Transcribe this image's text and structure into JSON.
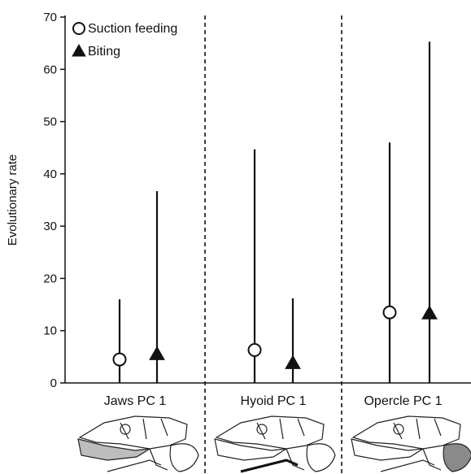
{
  "chart_data": {
    "type": "scatter",
    "ylabel": "Evolutionary rate",
    "ylim": [
      0,
      70
    ],
    "yticks": [
      0,
      10,
      20,
      30,
      40,
      50,
      60,
      70
    ],
    "categories": [
      "Jaws PC 1",
      "Hyoid PC 1",
      "Opercle PC 1"
    ],
    "legend_position": "top-left",
    "series": [
      {
        "name": "Suction feeding",
        "marker": "open-circle",
        "values": [
          4.5,
          6.3,
          13.5
        ],
        "upper": [
          16,
          44.7,
          46
        ]
      },
      {
        "name": "Biting",
        "marker": "filled-triangle",
        "values": [
          5.5,
          3.8,
          13.3
        ],
        "upper": [
          36.7,
          16.2,
          65.3
        ]
      }
    ],
    "panel_separators": "dashed",
    "colors": {
      "axis": "#111111",
      "highlight_fill": "#bdbdbd",
      "opercle_fill": "#8a8a8a"
    }
  }
}
